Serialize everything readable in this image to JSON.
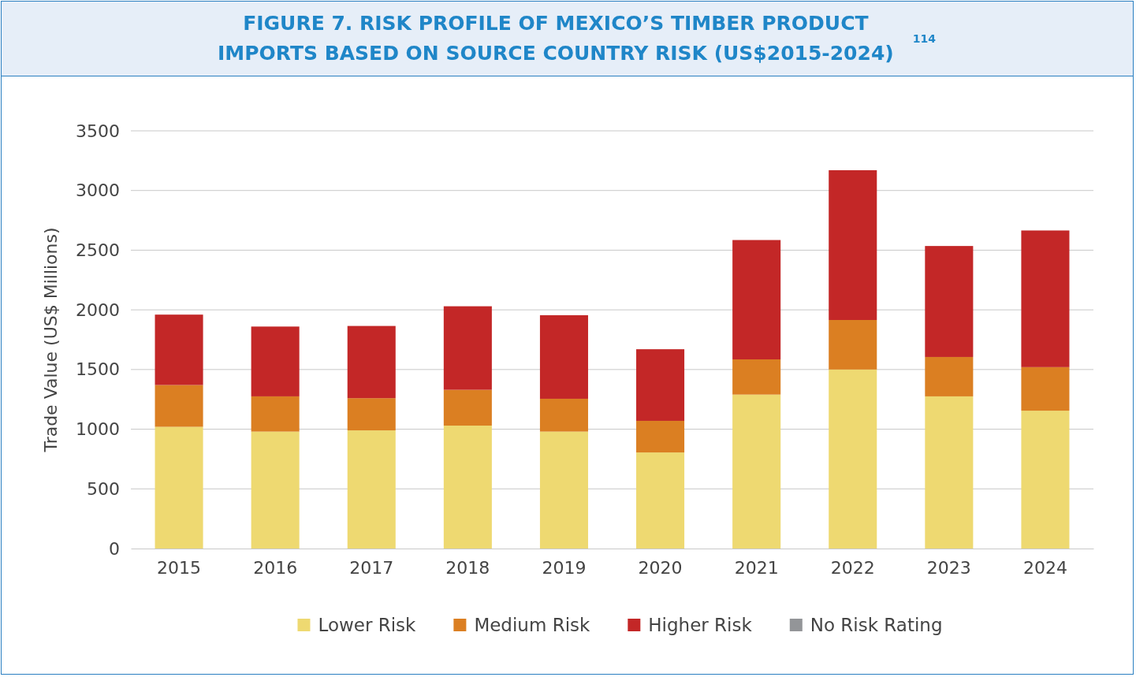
{
  "chart_data": {
    "type": "bar",
    "title": "FIGURE 7. RISK PROFILE OF MEXICO’S TIMBER PRODUCT IMPORTS BASED ON SOURCE COUNTRY RISK (US$2015-2024)$^{114}$",
    "ylabel": "Trade Value (US$ Millions)",
    "categories": [
      "2015",
      "2016",
      "2017",
      "2018",
      "2019",
      "2020",
      "2021",
      "2022",
      "2023",
      "2024"
    ],
    "stacked": true,
    "series": [
      {
        "name": "Lower Risk",
        "color": "#eed971",
        "values": [
          1020,
          980,
          990,
          1030,
          980,
          805,
          1290,
          1500,
          1275,
          1155
        ]
      },
      {
        "name": "Medium Risk",
        "color": "#db7f22",
        "values": [
          350,
          295,
          270,
          300,
          275,
          265,
          295,
          415,
          330,
          365
        ]
      },
      {
        "name": "Higher Risk",
        "color": "#c32727",
        "values": [
          590,
          585,
          605,
          700,
          700,
          600,
          1000,
          1255,
          930,
          1145
        ]
      },
      {
        "name": "No Risk Rating",
        "color": "#939598",
        "values": [
          0,
          0,
          0,
          0,
          0,
          0,
          0,
          0,
          0,
          0
        ]
      }
    ],
    "ylim": [
      0,
      3500
    ],
    "yticks": [
      0,
      500,
      1000,
      1500,
      2000,
      2500,
      3000,
      3500
    ],
    "grid": "y",
    "legend": "bottom"
  }
}
